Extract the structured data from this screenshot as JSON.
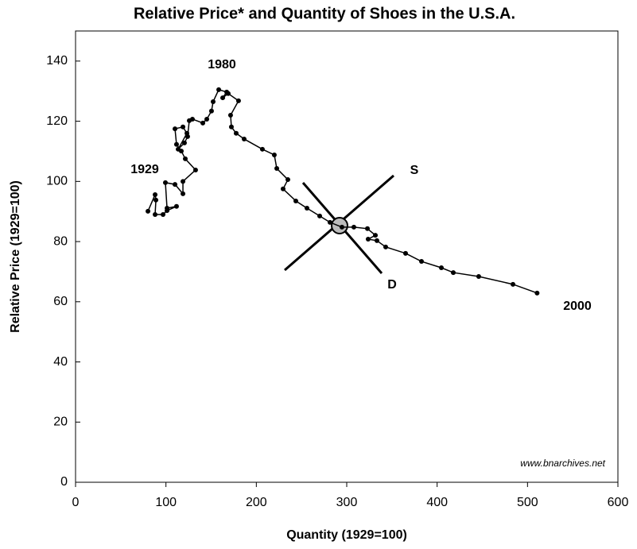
{
  "chart_data": {
    "type": "line",
    "title": "Relative Price* and Quantity of Shoes in the U.S.A.",
    "xlabel": "Quantity (1929=100)",
    "ylabel": "Relative Price (1929=100)",
    "annotations": [
      "1929",
      "1980",
      "2000",
      "S",
      "D",
      "www.bnarchives.net"
    ],
    "color": "#000000",
    "xlim": [
      0,
      600
    ],
    "xticks": [
      0,
      100,
      200,
      300,
      400,
      500,
      600
    ],
    "ylim": [
      0,
      150
    ],
    "yticks": [
      0,
      20,
      40,
      60,
      80,
      100,
      120,
      140
    ],
    "x": [
      80.1,
      88.0,
      88.9,
      88.0,
      96.8,
      101.2,
      111.7,
      101.2,
      99.4,
      110.0,
      118.8,
      118.8,
      132.8,
      121.4,
      117.0,
      111.7,
      110.0,
      118.8,
      123.2,
      113.5,
      120.5,
      124.0,
      125.8,
      129.3,
      140.8,
      145.2,
      150.4,
      152.2,
      158.4,
      167.2,
      162.8,
      168.9,
      180.3,
      171.5,
      172.4,
      177.7,
      186.5,
      206.7,
      219.9,
      222.6,
      234.9,
      229.6,
      243.7,
      256.0,
      270.1,
      281.5,
      294.7,
      307.9,
      322.9,
      331.7,
      323.7,
      333.4,
      343.1,
      365.1,
      382.7,
      404.7,
      417.9,
      446.0,
      483.9,
      510.6
    ],
    "values": [
      90.1,
      95.6,
      93.8,
      89.0,
      89.0,
      90.3,
      91.7,
      91.1,
      99.6,
      99.0,
      95.9,
      100.0,
      103.8,
      107.5,
      110.1,
      112.3,
      117.5,
      118.1,
      116.0,
      110.7,
      112.8,
      114.9,
      120.2,
      120.7,
      119.4,
      120.7,
      123.4,
      126.5,
      130.5,
      129.7,
      127.8,
      129.2,
      126.8,
      122.0,
      118.1,
      116.0,
      114.1,
      110.7,
      108.8,
      104.3,
      100.6,
      97.5,
      93.5,
      91.1,
      88.5,
      86.4,
      84.8,
      84.8,
      84.3,
      82.1,
      80.8,
      80.3,
      78.2,
      76.1,
      73.4,
      71.3,
      69.7,
      68.4,
      65.8,
      62.9
    ]
  }
}
